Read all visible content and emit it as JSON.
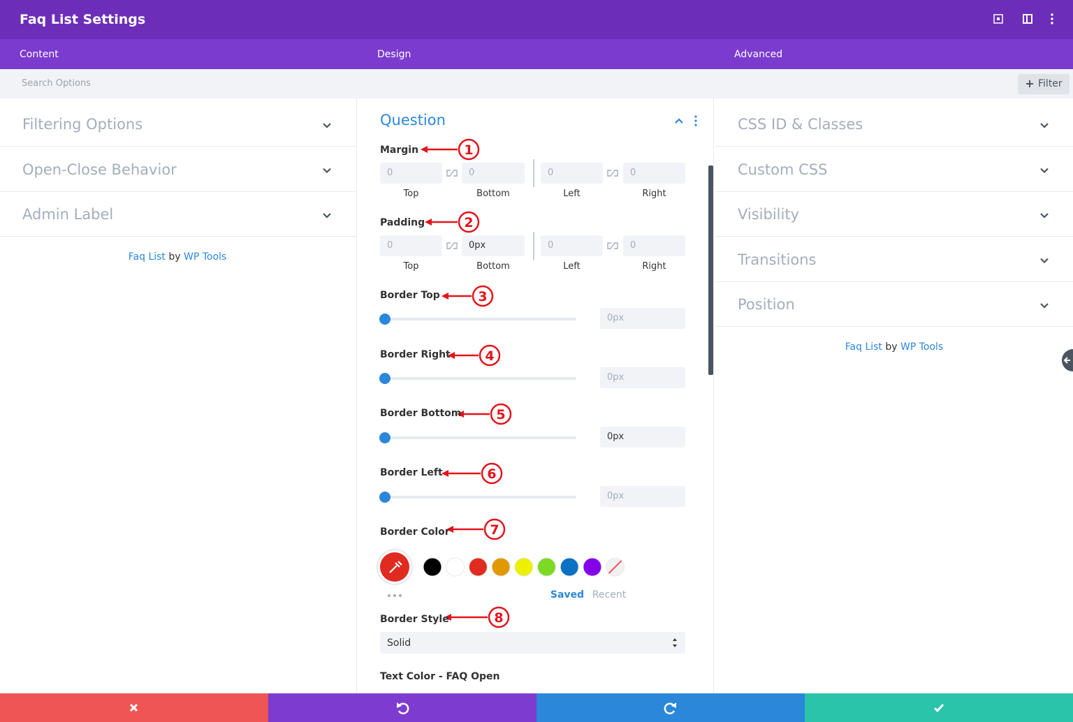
{
  "header": {
    "title": "Faq List Settings"
  },
  "tabs": [
    "Content",
    "Design",
    "Advanced"
  ],
  "search": {
    "placeholder": "Search Options",
    "filter": "Filter"
  },
  "left_panel": {
    "sections": [
      "Filtering Options",
      "Open-Close Behavior",
      "Admin Label"
    ],
    "credit": {
      "product": "Faq List",
      "by": "by",
      "vendor": "WP Tools"
    }
  },
  "design_panel": {
    "title": "Question",
    "spacing": [
      {
        "label": "Margin",
        "annotation": "1",
        "values": [
          "0",
          "0",
          "0",
          "0"
        ],
        "placeholders": [
          true,
          true,
          true,
          true
        ],
        "sides": [
          "Top",
          "Bottom",
          "Left",
          "Right"
        ]
      },
      {
        "label": "Padding",
        "annotation": "2",
        "values": [
          "0",
          "0px",
          "0",
          "0"
        ],
        "placeholders": [
          true,
          false,
          true,
          true
        ],
        "sides": [
          "Top",
          "Bottom",
          "Left",
          "Right"
        ]
      }
    ],
    "borders": [
      {
        "label": "Border Top",
        "annotation": "3",
        "value": "0px",
        "placeholder": true
      },
      {
        "label": "Border Right",
        "annotation": "4",
        "value": "0px",
        "placeholder": true
      },
      {
        "label": "Border Bottom",
        "annotation": "5",
        "value": "0px",
        "placeholder": false
      },
      {
        "label": "Border Left",
        "annotation": "6",
        "value": "0px",
        "placeholder": true
      }
    ],
    "border_color": {
      "label": "Border Color",
      "annotation": "7",
      "current": "#e02b20",
      "swatches": [
        "#000000",
        "#ffffff",
        "#e02b20",
        "#e09900",
        "#edf000",
        "#7cda24",
        "#0c71c3",
        "#8300e9",
        null
      ],
      "tabs": [
        "Saved",
        "Recent"
      ]
    },
    "border_style": {
      "label": "Border Style",
      "annotation": "8",
      "value": "Solid"
    },
    "next_label": "Text Color - FAQ Open"
  },
  "right_panel": {
    "sections": [
      "CSS ID & Classes",
      "Custom CSS",
      "Visibility",
      "Transitions",
      "Position"
    ],
    "credit": {
      "product": "Faq List",
      "by": "by",
      "vendor": "WP Tools"
    }
  }
}
